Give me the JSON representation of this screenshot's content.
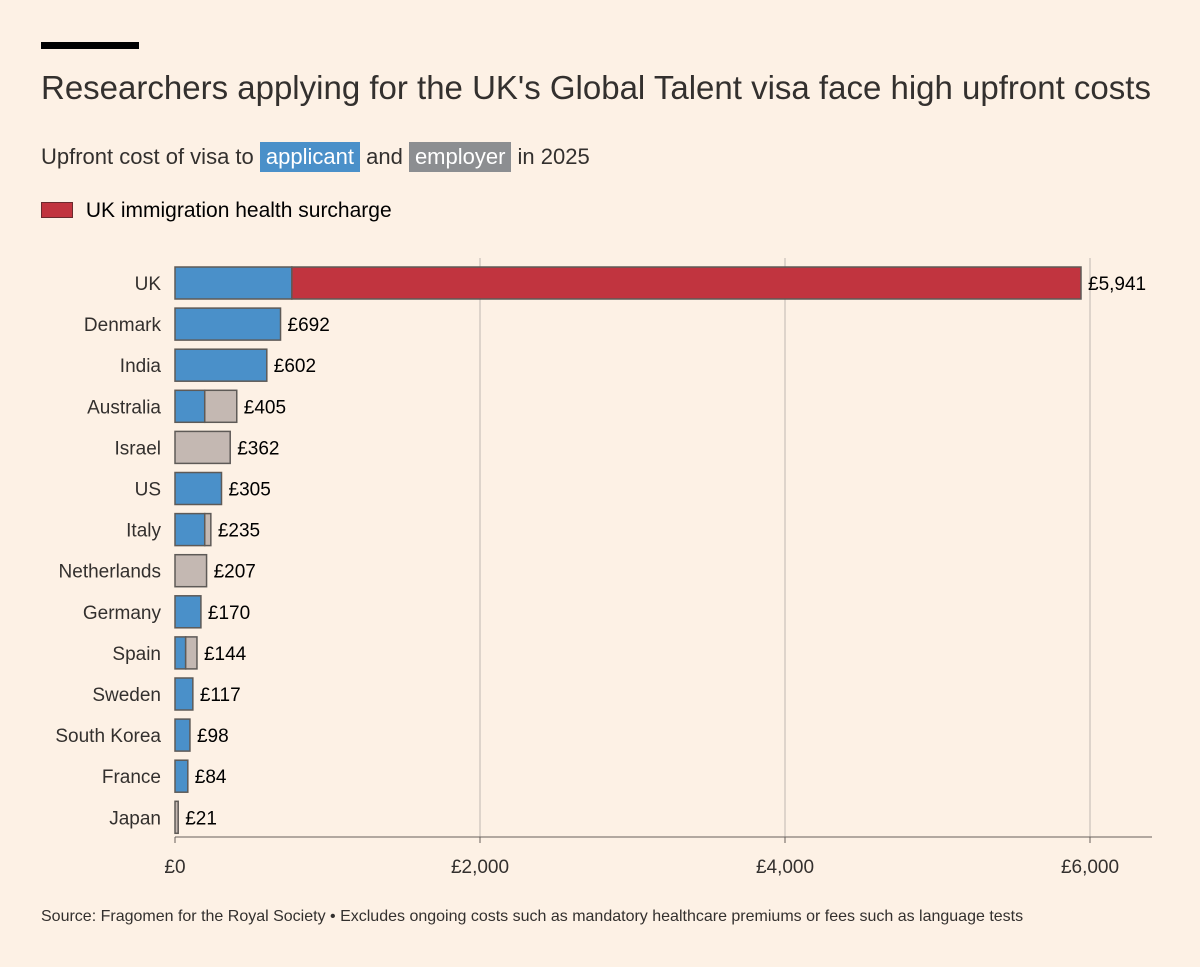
{
  "header": {
    "title": "Researchers applying for the UK's Global Talent visa face high upfront costs",
    "subtitle_prefix": "Upfront cost of visa to",
    "subtitle_applicant": "applicant",
    "subtitle_and": "and",
    "subtitle_employer": "employer",
    "subtitle_suffix": "in 2025"
  },
  "legend": {
    "surcharge_label": "UK immigration health surcharge"
  },
  "colors": {
    "applicant": "#4a90c9",
    "employer": "#8c8e91",
    "employer_bar": "#c4b8b2",
    "surcharge": "#c1343f",
    "background": "#fdf1e5",
    "gridline": "#bfb7b1"
  },
  "footer": {
    "source": "Source: Fragomen for the Royal Society • Excludes ongoing costs such as mandatory healthcare premiums or fees such as language tests"
  },
  "chart_data": {
    "type": "bar",
    "orientation": "horizontal",
    "stacked": true,
    "categories": [
      "UK",
      "Denmark",
      "India",
      "Australia",
      "Israel",
      "US",
      "Italy",
      "Netherlands",
      "Germany",
      "Spain",
      "Sweden",
      "South Korea",
      "France",
      "Japan"
    ],
    "series": [
      {
        "name": "applicant",
        "color": "#4a90c9",
        "values": [
          766,
          692,
          602,
          195,
          0,
          305,
          195,
          0,
          170,
          70,
          117,
          98,
          84,
          0
        ]
      },
      {
        "name": "employer",
        "color": "#c4b8b2",
        "values": [
          0,
          0,
          0,
          210,
          362,
          0,
          40,
          207,
          0,
          74,
          0,
          0,
          0,
          21
        ]
      },
      {
        "name": "UK immigration health surcharge",
        "color": "#c1343f",
        "values": [
          5175,
          0,
          0,
          0,
          0,
          0,
          0,
          0,
          0,
          0,
          0,
          0,
          0,
          0
        ]
      }
    ],
    "totals": [
      5941,
      692,
      602,
      405,
      362,
      305,
      235,
      207,
      170,
      144,
      117,
      98,
      84,
      21
    ],
    "data_labels": [
      "£5,941",
      "£692",
      "£602",
      "£405",
      "£362",
      "£305",
      "£235",
      "£207",
      "£170",
      "£144",
      "£117",
      "£98",
      "£84",
      "£21"
    ],
    "x_ticks": [
      0,
      2000,
      4000,
      6000
    ],
    "x_tick_labels": [
      "£0",
      "£2,000",
      "£4,000",
      "£6,000"
    ],
    "xlim": [
      0,
      6400
    ],
    "grid": "vertical"
  }
}
